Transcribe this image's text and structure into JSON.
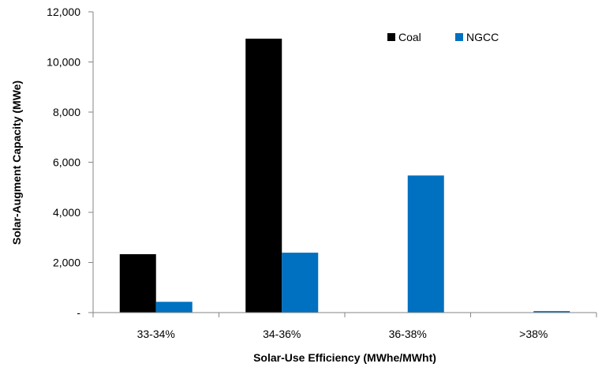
{
  "chart_data": {
    "type": "bar",
    "categories": [
      "33-34%",
      "34-36%",
      "36-38%",
      ">38%"
    ],
    "series": [
      {
        "name": "Coal",
        "values": [
          2330,
          10930,
          0,
          0
        ],
        "color": "#000000"
      },
      {
        "name": "NGCC",
        "values": [
          430,
          2390,
          5470,
          60
        ],
        "color": "#0070C0"
      }
    ],
    "xlabel": "Solar-Use Efficiency (MWhe/MWht)",
    "ylabel": "Solar-Augment Capacity (MWe)",
    "ylim": [
      0,
      12000
    ],
    "yticks": [
      0,
      2000,
      4000,
      6000,
      8000,
      10000,
      12000
    ],
    "ytick_labels": [
      "-",
      "2,000",
      "4,000",
      "6,000",
      "8,000",
      "10,000",
      "12,000"
    ],
    "grid": false,
    "legend": "top-right"
  }
}
